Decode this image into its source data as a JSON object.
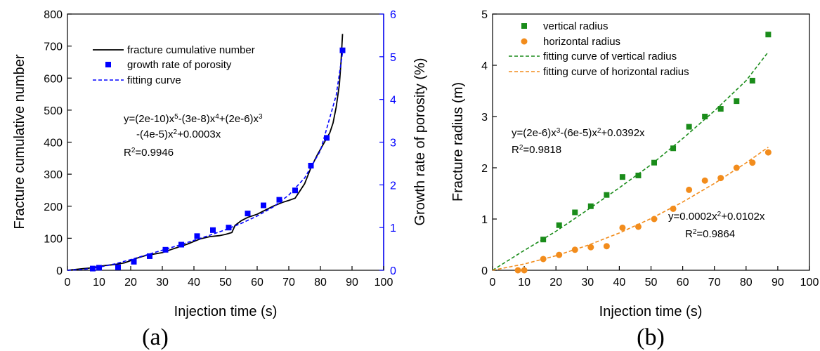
{
  "chart_data": [
    {
      "type": "line",
      "panel_label": "(a)",
      "xlabel": "Injection time (s)",
      "ylabel": "Fracture cumulative number",
      "y2label": "Growth rate of porosity (%)",
      "xlim": [
        0,
        100
      ],
      "ylim": [
        0,
        800
      ],
      "y2lim": [
        0,
        6
      ],
      "x_ticks": [
        "0",
        "10",
        "20",
        "30",
        "40",
        "50",
        "60",
        "70",
        "80",
        "90",
        "100"
      ],
      "y_ticks": [
        "0",
        "100",
        "200",
        "300",
        "400",
        "500",
        "600",
        "700",
        "800"
      ],
      "y2_ticks": [
        "0",
        "1",
        "2",
        "3",
        "4",
        "5",
        "6"
      ],
      "legend_position": "upper-left",
      "legend": [
        "fracture cumulative number",
        "growth rate of porosity",
        "fitting curve"
      ],
      "colors": {
        "cumulative": "#000000",
        "porosity": "#0000ff",
        "fit": "#0000ff",
        "right_axis": "#0000ff"
      },
      "equation": {
        "line1": {
          "pre": "y=(2e-10)x",
          "s1": "5",
          "m1": "-(3e-8)x",
          "s2": "4",
          "m2": "+(2e-6)x",
          "s3": "3"
        },
        "line2": {
          "pre": "-(4e-5)x",
          "s1": "2",
          "post": "+0.0003x"
        },
        "r2": {
          "pre": "R",
          "sup": "2",
          "post": "=0.9946"
        }
      },
      "series": [
        {
          "name": "fracture cumulative number",
          "axis": "left",
          "style": "line",
          "x": [
            0,
            5,
            8,
            10,
            12,
            15,
            18,
            20,
            22,
            25,
            27,
            30,
            32,
            35,
            38,
            40,
            42,
            45,
            48,
            50,
            52,
            53,
            55,
            57,
            60,
            62,
            65,
            68,
            70,
            72,
            73,
            75,
            77,
            79,
            81,
            83,
            84,
            85,
            86,
            86.5,
            87
          ],
          "y": [
            0,
            5,
            8,
            12,
            15,
            18,
            23,
            30,
            38,
            47,
            50,
            55,
            62,
            72,
            82,
            90,
            98,
            105,
            108,
            112,
            118,
            140,
            155,
            165,
            175,
            185,
            200,
            212,
            218,
            225,
            240,
            270,
            320,
            360,
            395,
            430,
            460,
            510,
            580,
            650,
            738
          ]
        },
        {
          "name": "growth rate of porosity",
          "axis": "right",
          "style": "square-marker",
          "x": [
            8,
            10,
            16,
            21,
            26,
            31,
            36,
            41,
            46,
            51,
            57,
            62,
            67,
            72,
            77,
            82,
            87
          ],
          "y": [
            0.04,
            0.06,
            0.07,
            0.2,
            0.33,
            0.48,
            0.6,
            0.8,
            0.94,
            1.0,
            1.33,
            1.52,
            1.65,
            1.87,
            2.45,
            3.1,
            5.15
          ]
        },
        {
          "name": "fitting curve",
          "axis": "right",
          "style": "dashed-line",
          "equation": "y=(2e-10)x^5-(3e-8)x^4+(2e-6)x^3-(4e-5)x^2+0.0003x",
          "x": [
            0,
            5,
            10,
            15,
            20,
            25,
            30,
            35,
            40,
            45,
            50,
            55,
            60,
            65,
            70,
            75,
            80,
            85,
            87
          ],
          "y": [
            0,
            0.02,
            0.07,
            0.15,
            0.25,
            0.36,
            0.47,
            0.58,
            0.7,
            0.82,
            0.95,
            1.1,
            1.27,
            1.48,
            1.76,
            2.16,
            2.8,
            4.1,
            5.1
          ]
        }
      ]
    },
    {
      "type": "scatter",
      "panel_label": "(b)",
      "xlabel": "Injection time (s)",
      "ylabel": "Fracture radius (m)",
      "xlim": [
        0,
        100
      ],
      "ylim": [
        0,
        5
      ],
      "x_ticks": [
        "0",
        "10",
        "20",
        "30",
        "40",
        "50",
        "60",
        "70",
        "80",
        "90",
        "100"
      ],
      "y_ticks": [
        "0",
        "1",
        "2",
        "3",
        "4",
        "5"
      ],
      "legend_position": "upper-left",
      "legend": [
        "vertical radius",
        "horizontal radius",
        "fitting curve of vertical radius",
        "fitting curve of horizontal radius"
      ],
      "colors": {
        "vertical": "#1a8c1a",
        "horizontal": "#f28c1c"
      },
      "equation_vertical": {
        "pre": "y=(2e-6)x",
        "s1": "3",
        "m1": "-(6e-5)x",
        "s2": "2",
        "post": "+0.0392x"
      },
      "r2_vertical": {
        "pre": "R",
        "sup": "2",
        "post": "=0.9818"
      },
      "equation_horizontal": {
        "pre": "y=0.0002x",
        "s1": "2",
        "post": "+0.0102x"
      },
      "r2_horizontal": {
        "pre": "R",
        "sup": "2",
        "post": "=0.9864"
      },
      "series": [
        {
          "name": "vertical radius",
          "style": "square-marker",
          "x": [
            16,
            21,
            26,
            31,
            36,
            41,
            46,
            51,
            57,
            62,
            67,
            72,
            77,
            82,
            87
          ],
          "y": [
            0.6,
            0.88,
            1.13,
            1.25,
            1.47,
            1.82,
            1.85,
            2.1,
            2.38,
            2.8,
            3.0,
            3.15,
            3.3,
            3.7,
            4.6
          ]
        },
        {
          "name": "horizontal radius",
          "style": "circle-marker",
          "x": [
            8,
            10,
            16,
            21,
            26,
            31,
            36,
            41,
            46,
            51,
            57,
            62,
            67,
            72,
            77,
            82,
            87
          ],
          "y": [
            0,
            0,
            0.22,
            0.3,
            0.4,
            0.45,
            0.47,
            0.83,
            0.85,
            1.0,
            1.2,
            1.57,
            1.75,
            1.8,
            2.0,
            2.1,
            2.3
          ]
        },
        {
          "name": "fitting curve of vertical radius",
          "style": "dashed-line",
          "equation": "y=(2e-6)x^3-(6e-5)x^2+0.0392x",
          "x": [
            0,
            10,
            20,
            30,
            40,
            50,
            60,
            70,
            80,
            87
          ],
          "y": [
            0,
            0.388,
            0.76,
            1.18,
            1.61,
            2.06,
            2.57,
            3.11,
            3.7,
            4.26
          ]
        },
        {
          "name": "fitting curve of horizontal radius",
          "style": "dashed-line",
          "equation": "y=0.0002x^2+0.0102x",
          "x": [
            0,
            10,
            20,
            30,
            40,
            50,
            60,
            70,
            80,
            87
          ],
          "y": [
            0,
            0.122,
            0.284,
            0.486,
            0.728,
            1.01,
            1.332,
            1.694,
            2.096,
            2.402
          ]
        }
      ]
    }
  ]
}
